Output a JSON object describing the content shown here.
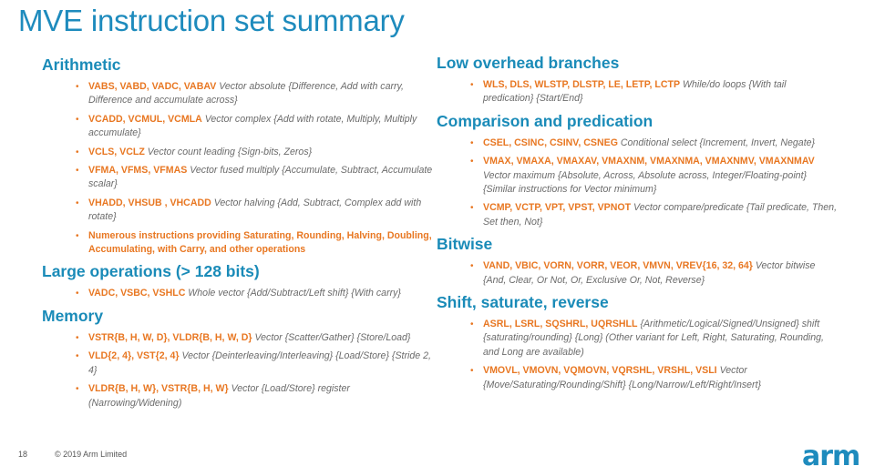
{
  "title": "MVE instruction set summary",
  "left": {
    "arithmetic": {
      "heading": "Arithmetic",
      "items": [
        {
          "kw": "VABS, VABD, VADC, VABAV",
          "desc": " Vector absolute {Difference, Add with carry, Difference and accumulate across}"
        },
        {
          "kw": "VCADD, VCMUL, VCMLA",
          "desc": " Vector complex {Add with rotate, Multiply, Multiply accumulate}"
        },
        {
          "kw": "VCLS, VCLZ",
          "desc": " Vector count leading {Sign-bits, Zeros}"
        },
        {
          "kw": "VFMA, VFMS, VFMAS",
          "desc": " Vector fused multiply {Accumulate, Subtract, Accumulate scalar}"
        },
        {
          "kw": "VHADD, VHSUB , VHCADD",
          "desc": " Vector halving {Add, Subtract, Complex add with rotate}"
        },
        {
          "kw": "Numerous instructions providing Saturating, Rounding, Halving, Doubling, Accumulating, with Carry, and other operations",
          "desc": ""
        }
      ]
    },
    "large": {
      "heading": "Large operations (> 128 bits)",
      "items": [
        {
          "kw": "VADC, VSBC, VSHLC",
          "desc": " Whole vector {Add/Subtract/Left shift} {With carry}"
        }
      ]
    },
    "memory": {
      "heading": "Memory",
      "items": [
        {
          "kw": "VSTR{B, H, W, D}, VLDR{B, H, W, D}",
          "desc": " Vector {Scatter/Gather} {Store/Load}"
        },
        {
          "kw": "VLD{2, 4}, VST{2, 4}",
          "desc": " Vector {Deinterleaving/Interleaving} {Load/Store} {Stride 2, 4}"
        },
        {
          "kw": "VLDR{B, H, W}, VSTR{B, H, W}",
          "desc": " Vector {Load/Store} register (Narrowing/Widening)"
        }
      ]
    }
  },
  "right": {
    "branches": {
      "heading": "Low overhead branches",
      "items": [
        {
          "kw": "WLS, DLS, WLSTP, DLSTP, LE, LETP, LCTP",
          "desc": " While/do loops {With tail predication} {Start/End}"
        }
      ]
    },
    "comparison": {
      "heading": "Comparison and predication",
      "items": [
        {
          "kw": "CSEL, CSINC, CSINV, CSNEG",
          "desc": " Conditional select {Increment, Invert, Negate}"
        },
        {
          "kw": "VMAX, VMAXA, VMAXAV, VMAXNM, VMAXNMA, VMAXNMV, VMAXNMAV",
          "desc": "  Vector maximum {Absolute, Across, Absolute across, Integer/Floating-point} {Similar instructions for Vector minimum}"
        },
        {
          "kw": "VCMP, VCTP, VPT, VPST, VPNOT",
          "desc": " Vector compare/predicate {Tail predicate, Then, Set then, Not}"
        }
      ]
    },
    "bitwise": {
      "heading": "Bitwise",
      "items": [
        {
          "kw": "VAND, VBIC, VORN, VORR, VEOR, VMVN, VREV{16, 32, 64}",
          "desc": " Vector bitwise {And, Clear, Or Not, Or, Exclusive Or, Not, Reverse}"
        }
      ]
    },
    "shift": {
      "heading": "Shift, saturate, reverse",
      "items": [
        {
          "kw": "ASRL, LSRL, SQSHRL, UQRSHLL",
          "desc": " {Arithmetic/Logical/Signed/Unsigned} shift {saturating/rounding} {Long} (Other variant for Left, Right, Saturating, Rounding, and Long are available)"
        },
        {
          "kw": "VMOVL, VMOVN, VQMOVN, VQRSHL, VRSHL, VSLI",
          "desc": " Vector {Move/Saturating/Rounding/Shift} {Long/Narrow/Left/Right/Insert}"
        }
      ]
    }
  },
  "footer": {
    "page": "18",
    "copyright": "© 2019 Arm Limited",
    "logo": "arm"
  }
}
